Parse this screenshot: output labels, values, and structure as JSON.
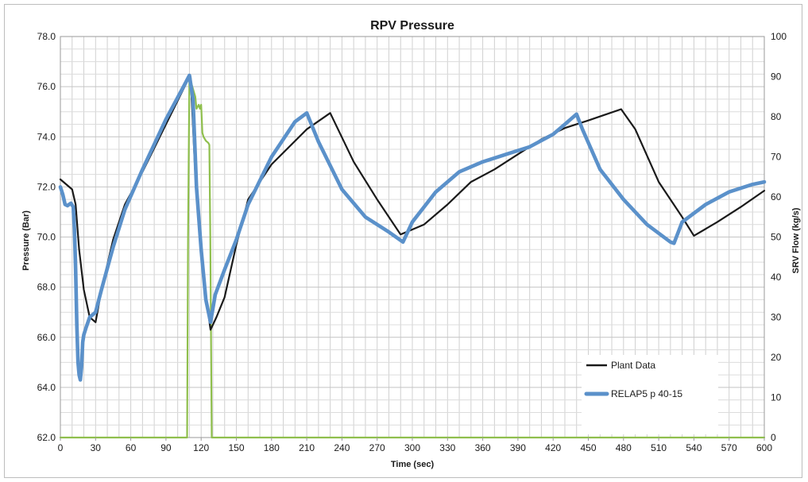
{
  "chart_data": {
    "type": "line",
    "title": "RPV Pressure",
    "xlabel": "Time (sec)",
    "ylabel": "Pressure (Bar)",
    "y2label": "SRV Flow (kg/s)",
    "xlim": [
      0,
      600
    ],
    "ylim": [
      62,
      78
    ],
    "y2lim": [
      0,
      100
    ],
    "x_ticks": [
      0,
      30,
      60,
      90,
      120,
      150,
      180,
      210,
      240,
      270,
      300,
      330,
      360,
      390,
      420,
      450,
      480,
      510,
      540,
      570,
      600
    ],
    "y_ticks": [
      "62.0",
      "64.0",
      "66.0",
      "68.0",
      "70.0",
      "72.0",
      "74.0",
      "76.0",
      "78.0"
    ],
    "y2_ticks": [
      0,
      10,
      20,
      30,
      40,
      50,
      60,
      70,
      80,
      90,
      100
    ],
    "grid": true,
    "legend_position": "bottom-right",
    "series": [
      {
        "name": "Plant Data",
        "axis": "left",
        "color": "#1a1a1a",
        "x": [
          0,
          10,
          13,
          16,
          20,
          25,
          30,
          35,
          45,
          55,
          70,
          90,
          108,
          111,
          115,
          120,
          125,
          128,
          133,
          140,
          150,
          160,
          180,
          210,
          230,
          250,
          270,
          290,
          310,
          330,
          350,
          370,
          390,
          410,
          430,
          450,
          478,
          490,
          510,
          530,
          540,
          560,
          580,
          600
        ],
        "y": [
          72.3,
          71.9,
          71.3,
          69.5,
          67.9,
          66.8,
          66.6,
          67.9,
          69.9,
          71.3,
          72.6,
          74.5,
          76.2,
          76.4,
          72.5,
          69.2,
          67.3,
          66.3,
          66.8,
          67.6,
          69.7,
          71.5,
          72.9,
          74.3,
          74.95,
          73.0,
          71.5,
          70.1,
          70.5,
          71.3,
          72.2,
          72.7,
          73.3,
          73.9,
          74.35,
          74.65,
          75.1,
          74.3,
          72.2,
          70.8,
          70.05,
          70.6,
          71.2,
          71.85
        ]
      },
      {
        "name": "RELAP5 p 40-15",
        "axis": "left",
        "color": "#5b91ca",
        "x": [
          0,
          2,
          4,
          6,
          9,
          11,
          12,
          13,
          14,
          15,
          16,
          17,
          18,
          19,
          20,
          22,
          25,
          30,
          35,
          45,
          55,
          70,
          90,
          105,
          110,
          113,
          116,
          120,
          124,
          128,
          132,
          140,
          150,
          160,
          180,
          200,
          210,
          220,
          240,
          260,
          280,
          292,
          300,
          320,
          340,
          360,
          380,
          400,
          420,
          430,
          440,
          445,
          460,
          480,
          500,
          520,
          523,
          530,
          550,
          570,
          590,
          600
        ],
        "y": [
          72.0,
          71.7,
          71.3,
          71.25,
          71.35,
          71.2,
          70.3,
          68.7,
          66.5,
          65.0,
          64.5,
          64.3,
          64.8,
          65.8,
          66.1,
          66.4,
          66.8,
          67.0,
          67.9,
          69.6,
          71.1,
          72.7,
          74.7,
          76.0,
          76.45,
          75.5,
          72.0,
          69.5,
          67.5,
          66.6,
          67.7,
          68.7,
          69.9,
          71.3,
          73.2,
          74.6,
          74.95,
          73.8,
          71.9,
          70.8,
          70.2,
          69.8,
          70.6,
          71.8,
          72.6,
          73.0,
          73.3,
          73.6,
          74.1,
          74.5,
          74.9,
          74.3,
          72.7,
          71.5,
          70.5,
          69.8,
          69.75,
          70.6,
          71.3,
          71.8,
          72.1,
          72.2
        ]
      },
      {
        "name": "SRV Flow",
        "axis": "right",
        "color": "#8fbf4d",
        "x": [
          0,
          108,
          108.8,
          110,
          115,
          116,
          118,
          119,
          120,
          121,
          122,
          124,
          126,
          127,
          127.8,
          129,
          130,
          600
        ],
        "y": [
          0,
          0,
          50,
          90,
          85,
          82,
          83,
          82,
          83,
          76,
          75,
          74,
          73.5,
          73,
          50,
          0,
          0,
          0
        ]
      }
    ]
  }
}
